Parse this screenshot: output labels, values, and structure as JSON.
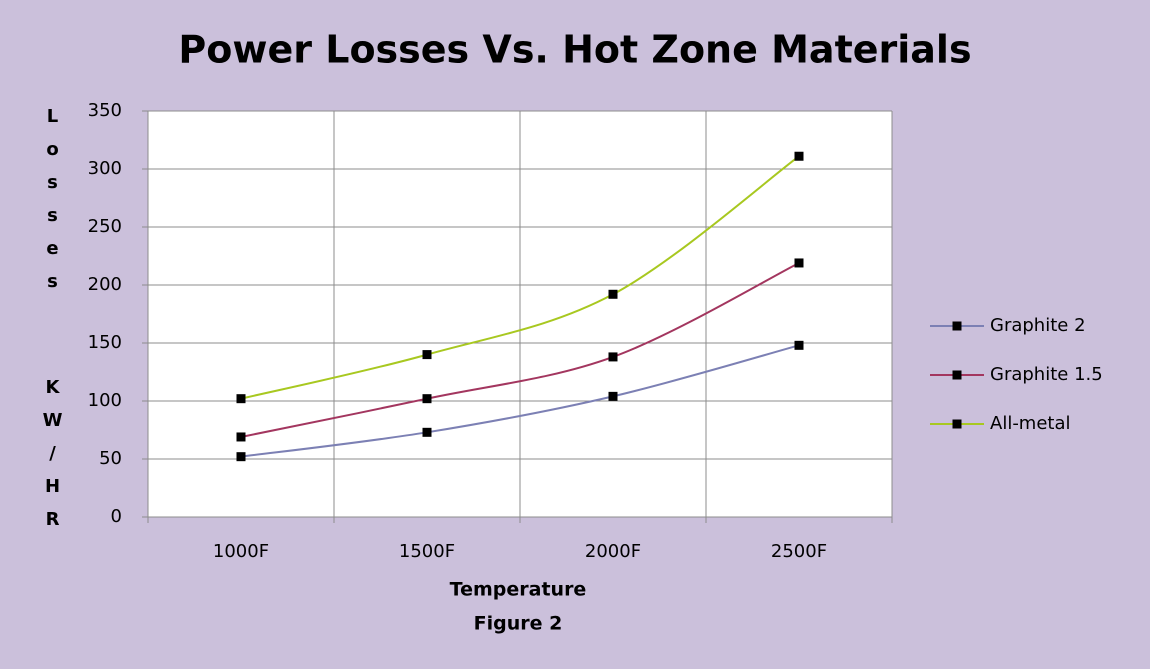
{
  "chart_data": {
    "type": "line",
    "title": "Power Losses Vs. Hot Zone Materials",
    "x_label": "Temperature",
    "subtitle": "Figure 2",
    "y_label": "Losses KW/HR",
    "categories": [
      "1000F",
      "1500F",
      "2000F",
      "2500F"
    ],
    "series": [
      {
        "name": "Graphite 2",
        "color": "#7c80b4",
        "values": [
          52,
          73,
          104,
          148
        ]
      },
      {
        "name": "Graphite 1.5",
        "color": "#a3365f",
        "values": [
          69,
          102,
          138,
          219
        ]
      },
      {
        "name": "All-metal",
        "color": "#a8c820",
        "values": [
          102,
          140,
          192,
          311
        ]
      }
    ],
    "ylim": [
      0,
      350
    ],
    "yticks": [
      0,
      50,
      100,
      150,
      200,
      250,
      300,
      350
    ],
    "grid": true,
    "smooth": true,
    "legend": "right"
  }
}
